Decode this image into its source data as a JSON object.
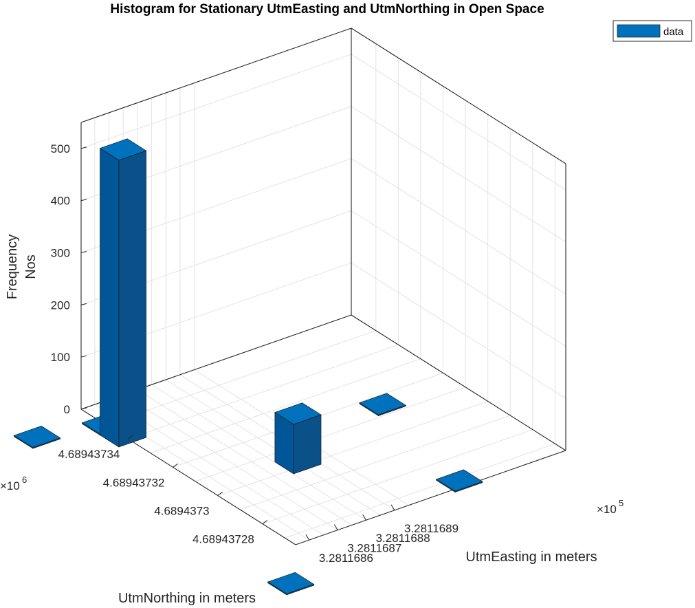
{
  "chart_data": {
    "type": "histogram3d",
    "title": "Histogram for Stationary UtmEasting and UtmNorthing in Open Space",
    "xlabel": "UtmEasting in meters",
    "ylabel": "UtmNorthing in meters",
    "zlabel_line1": "Frequency",
    "zlabel_line2": "Nos",
    "x_ticks": [
      "3.2811686",
      "3.2811687",
      "3.2811688",
      "3.2811689"
    ],
    "x_multiplier": "×10",
    "x_exponent": "5",
    "y_ticks": [
      "4.68943734",
      "4.68943732",
      "4.6894373",
      "4.68943728"
    ],
    "y_multiplier": "×10",
    "y_exponent": "6",
    "z_ticks": [
      "0",
      "100",
      "200",
      "300",
      "400",
      "500"
    ],
    "zlim": [
      0,
      550
    ],
    "legend": {
      "label": "data",
      "position": "top-right"
    },
    "grid": true,
    "bar_color": "#0072BD",
    "bars": [
      {
        "x": 328116.855,
        "y": 4689437.342,
        "count": 550
      },
      {
        "x": 328116.885,
        "y": 4689437.302,
        "count": 95
      },
      {
        "x": 328116.855,
        "y": 4689437.35,
        "count": 2
      },
      {
        "x": 328116.925,
        "y": 4689437.315,
        "count": 2
      },
      {
        "x": 328116.84,
        "y": 4689437.248,
        "count": 2
      },
      {
        "x": 328116.915,
        "y": 4689437.268,
        "count": 2
      },
      {
        "x": 328116.835,
        "y": 4689437.355,
        "count": 2
      }
    ]
  }
}
